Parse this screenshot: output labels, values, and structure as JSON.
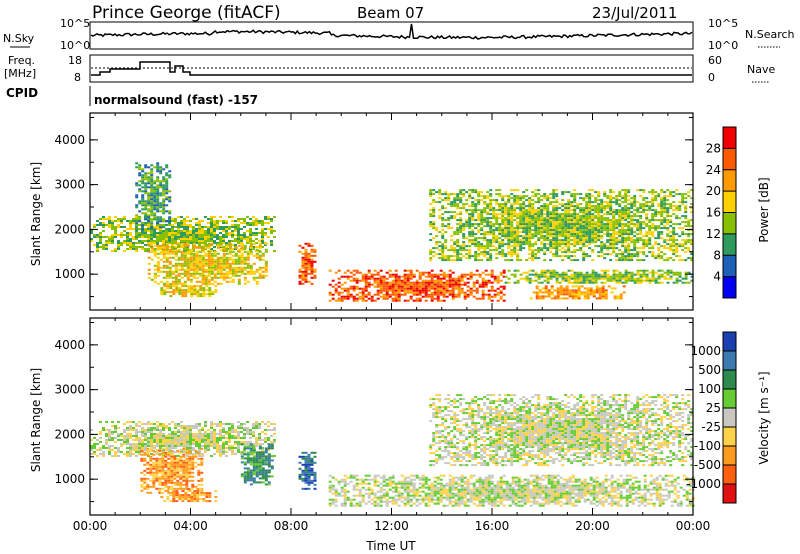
{
  "header": {
    "station": "Prince George (fitACF)",
    "beam": "Beam 07",
    "date": "23/Jul/2011"
  },
  "noise_panel": {
    "left_label": "N.Sky",
    "right_label": "N.Search",
    "left_ticks": [
      "10^5",
      "10^0"
    ],
    "right_ticks": [
      "10^5",
      "10^0"
    ]
  },
  "freq_panel": {
    "left_label_1": "Freq.",
    "left_label_2": "[MHz]",
    "right_label": "Nave",
    "left_ticks": [
      "18",
      "8"
    ],
    "right_ticks": [
      "60",
      "0"
    ]
  },
  "cpid": {
    "label": "CPID",
    "text": "normalsound (fast) -157"
  },
  "chart_data": [
    {
      "type": "heatmap",
      "name": "power",
      "ylabel": "Slant Range [km]",
      "yticks": [
        "4000",
        "3000",
        "2000",
        "1000"
      ],
      "ylim": [
        200,
        4600
      ],
      "xlim": [
        "00:00",
        "24:00"
      ],
      "colorbar": {
        "label": "Power [dB]",
        "ticks": [
          "28",
          "24",
          "20",
          "16",
          "12",
          "8",
          "4"
        ],
        "colors": [
          "#f00000",
          "#ff5a00",
          "#ff9a00",
          "#ffd000",
          "#88c000",
          "#2e9a5e",
          "#1e5fb8",
          "#0000f0"
        ]
      },
      "regions": [
        {
          "t0": 0.0,
          "t1": 7.3,
          "r0": 1500,
          "r1": 2300,
          "level": 3
        },
        {
          "t0": 1.8,
          "t1": 3.2,
          "r0": 2000,
          "r1": 3500,
          "level": 2
        },
        {
          "t0": 2.3,
          "t1": 7.0,
          "r0": 800,
          "r1": 1700,
          "level": 4
        },
        {
          "t0": 2.8,
          "t1": 5.0,
          "r0": 500,
          "r1": 800,
          "level": 4
        },
        {
          "t0": 8.3,
          "t1": 9.0,
          "r0": 800,
          "r1": 1700,
          "level": 6
        },
        {
          "t0": 9.5,
          "t1": 16.5,
          "r0": 400,
          "r1": 1100,
          "level": 6
        },
        {
          "t0": 13.5,
          "t1": 24.0,
          "r0": 1300,
          "r1": 2900,
          "level": 3
        },
        {
          "t0": 16.5,
          "t1": 24.0,
          "r0": 800,
          "r1": 1100,
          "level": 3
        },
        {
          "t0": 17.5,
          "t1": 21.3,
          "r0": 450,
          "r1": 750,
          "level": 5
        }
      ]
    },
    {
      "type": "heatmap",
      "name": "velocity",
      "ylabel": "Slant Range [km]",
      "yticks": [
        "4000",
        "3000",
        "2000",
        "1000"
      ],
      "ylim": [
        200,
        4600
      ],
      "xlim": [
        "00:00",
        "24:00"
      ],
      "xticks": [
        "00:00",
        "04:00",
        "08:00",
        "12:00",
        "16:00",
        "20:00",
        "00:00"
      ],
      "xlabel": "Time UT",
      "colorbar": {
        "label": "Velocity [m s⁻¹]",
        "ticks": [
          "1000",
          "500",
          "100",
          "25",
          "-25",
          "-100",
          "-500",
          "-1000"
        ],
        "colors": [
          "#1a3fb0",
          "#3c7ab0",
          "#2e8a4e",
          "#66cc33",
          "#c8c8c0",
          "#ffd24a",
          "#ff9a20",
          "#ff6010",
          "#e01010"
        ]
      },
      "regions": [
        {
          "t0": 0.0,
          "t1": 7.3,
          "r0": 1500,
          "r1": 2300,
          "level": 4
        },
        {
          "t0": 2.0,
          "t1": 4.5,
          "r0": 700,
          "r1": 1700,
          "level": 6
        },
        {
          "t0": 2.8,
          "t1": 5.0,
          "r0": 500,
          "r1": 800,
          "level": 6
        },
        {
          "t0": 6.0,
          "t1": 7.3,
          "r0": 900,
          "r1": 1800,
          "level": 2
        },
        {
          "t0": 8.3,
          "t1": 9.0,
          "r0": 800,
          "r1": 1700,
          "level": 1
        },
        {
          "t0": 9.5,
          "t1": 24.0,
          "r0": 400,
          "r1": 1100,
          "level": 4
        },
        {
          "t0": 13.5,
          "t1": 24.0,
          "r0": 1300,
          "r1": 2900,
          "level": 4
        }
      ]
    }
  ]
}
